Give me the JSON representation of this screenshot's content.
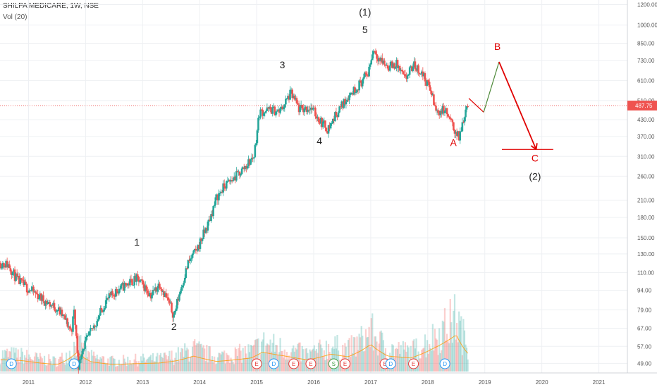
{
  "header": {
    "symbol_line": "SHILPA MEDICARE, 1W, NSE",
    "volume_label": "Vol (20)"
  },
  "colors": {
    "up": "#26a69a",
    "down": "#ef5350",
    "wave_label": "#222222",
    "projection": "#e00000",
    "projection_up": "#4e8a3a",
    "price_line": "#ef5350",
    "volume_ma": "#ff9800",
    "dividend": "#2196f3",
    "earnings": "#e53935",
    "split": "#43a047"
  },
  "price_axis": {
    "scale": "log",
    "ticks": [
      "1200.00",
      "1000.00",
      "850.00",
      "730.00",
      "610.00",
      "510.00",
      "430.00",
      "370.00",
      "310.00",
      "260.00",
      "210.00",
      "180.00",
      "150.00",
      "130.00",
      "110.00",
      "94.00",
      "79.00",
      "67.00",
      "57.00",
      "49.00"
    ],
    "last_price": "487.75"
  },
  "time_axis": {
    "ticks": [
      "2011",
      "2012",
      "2013",
      "2014",
      "2015",
      "2016",
      "2017",
      "2018",
      "2019",
      "2020",
      "2021"
    ]
  },
  "chart_data": {
    "type": "candlestick",
    "title": "SHILPA MEDICARE, 1W, NSE",
    "y_scale": "log",
    "ylim": [
      45,
      1250
    ],
    "xlim": [
      2010.5,
      2021.5
    ],
    "current_price": 487.75,
    "price_path": [
      [
        2010.52,
        120
      ],
      [
        2010.65,
        118
      ],
      [
        2010.8,
        103
      ],
      [
        2010.95,
        97
      ],
      [
        2011.1,
        92
      ],
      [
        2011.3,
        85
      ],
      [
        2011.5,
        80
      ],
      [
        2011.65,
        72
      ],
      [
        2011.75,
        65
      ],
      [
        2011.8,
        78
      ],
      [
        2011.88,
        47
      ],
      [
        2011.93,
        55
      ],
      [
        2012.05,
        62
      ],
      [
        2012.2,
        72
      ],
      [
        2012.35,
        85
      ],
      [
        2012.55,
        94
      ],
      [
        2012.75,
        100
      ],
      [
        2012.9,
        104
      ],
      [
        2013.05,
        96
      ],
      [
        2013.15,
        90
      ],
      [
        2013.3,
        100
      ],
      [
        2013.45,
        85
      ],
      [
        2013.55,
        75
      ],
      [
        2013.65,
        92
      ],
      [
        2013.8,
        120
      ],
      [
        2013.95,
        135
      ],
      [
        2014.15,
        170
      ],
      [
        2014.3,
        215
      ],
      [
        2014.45,
        240
      ],
      [
        2014.6,
        255
      ],
      [
        2014.75,
        275
      ],
      [
        2014.95,
        310
      ],
      [
        2015.05,
        460
      ],
      [
        2015.25,
        470
      ],
      [
        2015.4,
        460
      ],
      [
        2015.6,
        545
      ],
      [
        2015.75,
        470
      ],
      [
        2015.95,
        480
      ],
      [
        2016.1,
        430
      ],
      [
        2016.25,
        395
      ],
      [
        2016.4,
        455
      ],
      [
        2016.6,
        530
      ],
      [
        2016.8,
        590
      ],
      [
        2016.95,
        650
      ],
      [
        2017.05,
        810
      ],
      [
        2017.15,
        740
      ],
      [
        2017.3,
        690
      ],
      [
        2017.45,
        705
      ],
      [
        2017.6,
        615
      ],
      [
        2017.75,
        700
      ],
      [
        2017.9,
        650
      ],
      [
        2018.05,
        560
      ],
      [
        2018.15,
        460
      ],
      [
        2018.3,
        470
      ],
      [
        2018.45,
        400
      ],
      [
        2018.55,
        365
      ],
      [
        2018.65,
        460
      ],
      [
        2018.72,
        515
      ]
    ],
    "volume_path": [
      [
        2010.6,
        30
      ],
      [
        2010.9,
        28
      ],
      [
        2011.2,
        22
      ],
      [
        2011.5,
        18
      ],
      [
        2011.85,
        50
      ],
      [
        2012.1,
        25
      ],
      [
        2012.5,
        18
      ],
      [
        2012.8,
        20
      ],
      [
        2013.3,
        22
      ],
      [
        2013.6,
        28
      ],
      [
        2013.9,
        40
      ],
      [
        2014.3,
        26
      ],
      [
        2014.6,
        30
      ],
      [
        2014.9,
        35
      ],
      [
        2015.1,
        50
      ],
      [
        2015.5,
        40
      ],
      [
        2015.9,
        30
      ],
      [
        2016.3,
        45
      ],
      [
        2016.6,
        38
      ],
      [
        2017.0,
        70
      ],
      [
        2017.3,
        40
      ],
      [
        2017.7,
        35
      ],
      [
        2018.1,
        60
      ],
      [
        2018.5,
        95
      ],
      [
        2018.75,
        40
      ]
    ],
    "wave_labels": [
      {
        "text": "1",
        "x": 2012.9,
        "y": 140
      },
      {
        "text": "2",
        "x": 2013.55,
        "y": 66
      },
      {
        "text": "3",
        "x": 2015.45,
        "y": 680
      },
      {
        "text": "4",
        "x": 2016.1,
        "y": 345
      },
      {
        "text": "5",
        "x": 2016.9,
        "y": 930
      },
      {
        "text": "(1)",
        "x": 2016.9,
        "y": 1090
      }
    ],
    "projection_labels": [
      {
        "text": "A",
        "x": 2018.45,
        "y": 340
      },
      {
        "text": "B",
        "x": 2019.22,
        "y": 800
      },
      {
        "text": "C",
        "x": 2019.88,
        "y": 296
      },
      {
        "text": "(2)",
        "x": 2019.88,
        "y": 252
      }
    ],
    "projection_path": [
      {
        "x": 2018.72,
        "y": 520,
        "color": "projection"
      },
      {
        "x": 2018.98,
        "y": 460,
        "color": "projection_up"
      },
      {
        "x": 2019.25,
        "y": 720,
        "color": "projection"
      },
      {
        "x": 2019.9,
        "y": 330
      }
    ],
    "target_line": {
      "x1": 2019.3,
      "x2": 2020.2,
      "y": 330
    },
    "events": [
      {
        "type": "D",
        "x": 2010.7
      },
      {
        "type": "D",
        "x": 2011.8
      },
      {
        "type": "E",
        "x": 2015.0
      },
      {
        "type": "D",
        "x": 2015.3
      },
      {
        "type": "E",
        "x": 2015.65
      },
      {
        "type": "E",
        "x": 2015.95
      },
      {
        "type": "S",
        "x": 2016.35
      },
      {
        "type": "E",
        "x": 2016.55
      },
      {
        "type": "E",
        "x": 2017.25
      },
      {
        "type": "D",
        "x": 2017.35
      },
      {
        "type": "E",
        "x": 2017.75
      },
      {
        "type": "D",
        "x": 2018.3
      }
    ]
  }
}
